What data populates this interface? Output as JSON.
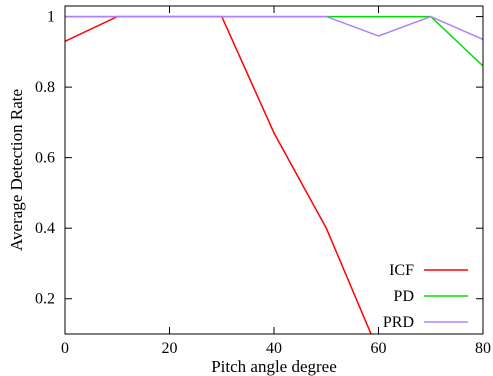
{
  "chart_data": {
    "type": "line",
    "title": "",
    "xlabel": "Pitch angle degree",
    "ylabel": "Average Detection Rate",
    "xlim": [
      0,
      80
    ],
    "ylim": [
      0.1,
      1.03
    ],
    "x_ticks": [
      0,
      20,
      40,
      60,
      80
    ],
    "y_ticks": [
      0.2,
      0.4,
      0.6,
      0.8,
      1
    ],
    "grid": false,
    "legend_position": "bottom-right",
    "series": [
      {
        "name": "ICF",
        "color": "#ff0000",
        "x": [
          0,
          10,
          20,
          30,
          40,
          50,
          60
        ],
        "y": [
          0.93,
          1.0,
          1.0,
          1.0,
          0.67,
          0.4,
          0.05
        ]
      },
      {
        "name": "PD",
        "color": "#00dd00",
        "x": [
          0,
          10,
          20,
          30,
          40,
          50,
          60,
          70,
          80
        ],
        "y": [
          1.0,
          1.0,
          1.0,
          1.0,
          1.0,
          1.0,
          1.0,
          1.0,
          0.86
        ]
      },
      {
        "name": "PRD",
        "color": "#b080ff",
        "x": [
          0,
          10,
          20,
          30,
          40,
          50,
          60,
          70,
          80
        ],
        "y": [
          1.0,
          1.0,
          1.0,
          1.0,
          1.0,
          1.0,
          0.945,
          1.0,
          0.935
        ]
      }
    ]
  }
}
